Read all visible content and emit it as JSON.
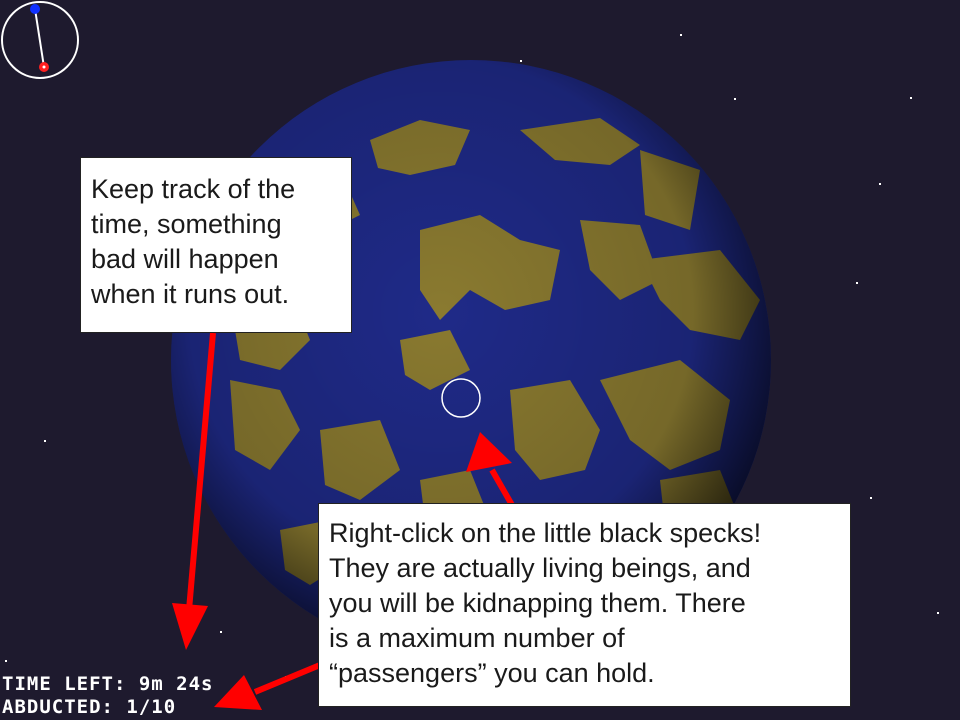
{
  "hud": {
    "time_label": "TIME LEFT:",
    "time_value": "9m 24s",
    "abducted_label": "ABDUCTED:",
    "abducted_value": "1/10"
  },
  "tooltips": {
    "time": "Keep track of the\ntime, something\nbad will happen\nwhen it runs out.",
    "abduct": "Right-click on the little black specks!\nThey are actually living beings, and\nyou will be kidnapping them. There\nis a maximum number of\n“passengers” you can hold."
  },
  "colors": {
    "space": "#1e1a2e",
    "ocean": "#1f2a88",
    "land": "#8a7a30",
    "arrow": "#ff0000",
    "clock_top_marker": "#1030ff",
    "clock_hand_marker": "#ff2020"
  },
  "clock": {
    "icon": "timer-dial-icon"
  }
}
